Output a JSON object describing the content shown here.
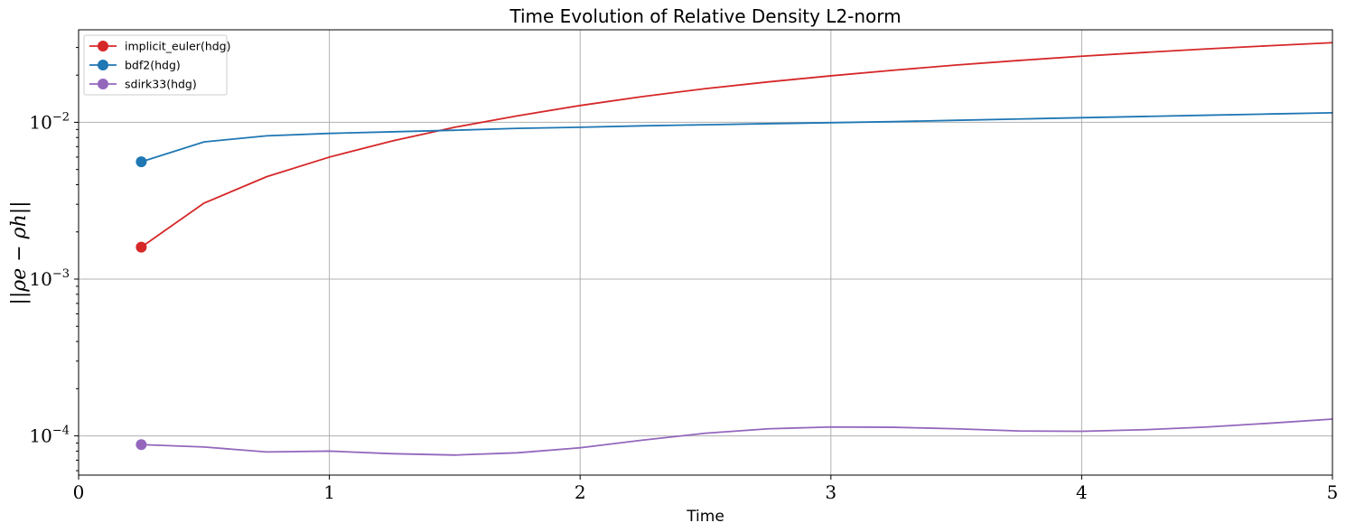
{
  "chart_data": {
    "type": "line",
    "title": "Time Evolution of Relative Density L2-norm",
    "xlabel": "Time",
    "ylabel": "||ρe − ρh||",
    "xlim": [
      0,
      5
    ],
    "ylim_log10": [
      -4.25,
      -1.41
    ],
    "yscale": "log",
    "grid": true,
    "legend_position": "top-left",
    "x_ticks": [
      0,
      1,
      2,
      3,
      4,
      5
    ],
    "x_tick_labels": [
      "0",
      "1",
      "2",
      "3",
      "4",
      "5"
    ],
    "y_ticks_log10": [
      -4,
      -3,
      -2
    ],
    "y_tick_labels": [
      {
        "base": "10",
        "exp": "−4"
      },
      {
        "base": "10",
        "exp": "−3"
      },
      {
        "base": "10",
        "exp": "−2"
      }
    ],
    "series": [
      {
        "name": "implicit_euler(hdg)",
        "color": "#d62728",
        "x": [
          0.25,
          0.5,
          0.75,
          1.0,
          1.25,
          1.5,
          1.75,
          2.0,
          2.25,
          2.5,
          2.75,
          3.0,
          3.25,
          3.5,
          3.75,
          4.0,
          4.25,
          4.5,
          4.75,
          5.0
        ],
        "y": [
          0.0016,
          0.00305,
          0.0045,
          0.006,
          0.0076,
          0.0093,
          0.011,
          0.0128,
          0.0146,
          0.0164,
          0.0181,
          0.0198,
          0.0215,
          0.0232,
          0.0248,
          0.0264,
          0.0279,
          0.0294,
          0.0308,
          0.0322
        ]
      },
      {
        "name": "bdf2(hdg)",
        "color": "#1f77b4",
        "x": [
          0.25,
          0.5,
          0.75,
          1.0,
          1.25,
          1.5,
          1.75,
          2.0,
          2.25,
          2.5,
          2.75,
          3.0,
          3.25,
          3.5,
          3.75,
          4.0,
          4.25,
          4.5,
          4.75,
          5.0
        ],
        "y": [
          0.0056,
          0.0075,
          0.0082,
          0.0085,
          0.0087,
          0.0089,
          0.00915,
          0.0093,
          0.0095,
          0.00965,
          0.0098,
          0.00995,
          0.0101,
          0.0103,
          0.0105,
          0.0107,
          0.0109,
          0.0111,
          0.0113,
          0.0115
        ]
      },
      {
        "name": "sdirk33(hdg)",
        "color": "#9467bd",
        "x": [
          0.25,
          0.5,
          0.75,
          1.0,
          1.25,
          1.5,
          1.75,
          2.0,
          2.25,
          2.5,
          2.75,
          3.0,
          3.25,
          3.5,
          3.75,
          4.0,
          4.25,
          4.5,
          4.75,
          5.0
        ],
        "y": [
          8.8e-05,
          8.5e-05,
          7.9e-05,
          8e-05,
          7.7e-05,
          7.55e-05,
          7.8e-05,
          8.4e-05,
          9.4e-05,
          0.000104,
          0.000111,
          0.000114,
          0.0001135,
          0.000111,
          0.0001075,
          0.000107,
          0.0001095,
          0.000114,
          0.0001205,
          0.000128
        ]
      }
    ]
  }
}
